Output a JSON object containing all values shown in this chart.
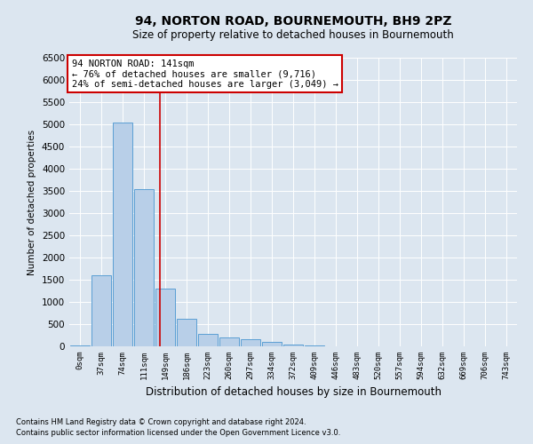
{
  "title": "94, NORTON ROAD, BOURNEMOUTH, BH9 2PZ",
  "subtitle": "Size of property relative to detached houses in Bournemouth",
  "xlabel": "Distribution of detached houses by size in Bournemouth",
  "ylabel": "Number of detached properties",
  "bar_labels": [
    "0sqm",
    "37sqm",
    "74sqm",
    "111sqm",
    "149sqm",
    "186sqm",
    "223sqm",
    "260sqm",
    "297sqm",
    "334sqm",
    "372sqm",
    "409sqm",
    "446sqm",
    "483sqm",
    "520sqm",
    "557sqm",
    "594sqm",
    "632sqm",
    "669sqm",
    "706sqm",
    "743sqm"
  ],
  "bar_values": [
    20,
    1600,
    5050,
    3550,
    1300,
    620,
    280,
    200,
    160,
    110,
    50,
    30,
    0,
    0,
    0,
    0,
    0,
    0,
    0,
    0,
    0
  ],
  "bar_color": "#b8cfe8",
  "bar_edge_color": "#5a9fd4",
  "vline_x": 3.76,
  "vline_color": "#cc0000",
  "ylim": [
    0,
    6500
  ],
  "yticks": [
    0,
    500,
    1000,
    1500,
    2000,
    2500,
    3000,
    3500,
    4000,
    4500,
    5000,
    5500,
    6000,
    6500
  ],
  "annotation_title": "94 NORTON ROAD: 141sqm",
  "annotation_line1": "← 76% of detached houses are smaller (9,716)",
  "annotation_line2": "24% of semi-detached houses are larger (3,049) →",
  "annotation_box_color": "#cc0000",
  "footnote1": "Contains HM Land Registry data © Crown copyright and database right 2024.",
  "footnote2": "Contains public sector information licensed under the Open Government Licence v3.0.",
  "bg_color": "#dce6f0",
  "plot_bg_color": "#dce6f0",
  "grid_color": "#ffffff",
  "title_fontsize": 10,
  "subtitle_fontsize": 8.5,
  "ylabel_fontsize": 7.5,
  "xlabel_fontsize": 8.5,
  "ytick_fontsize": 7.5,
  "xtick_fontsize": 6.5,
  "annot_fontsize": 7.5,
  "footnote_fontsize": 6.0
}
